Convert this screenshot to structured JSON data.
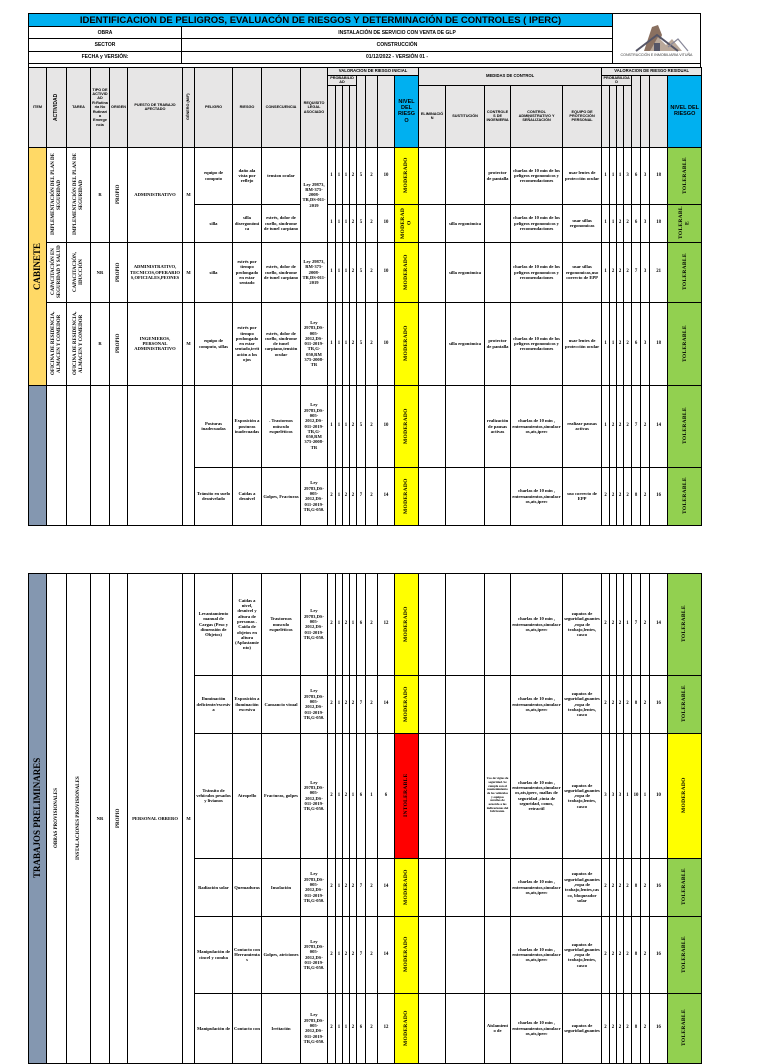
{
  "header": {
    "title": "IDENTIFICACION DE PELIGROS, EVALUACÓN DE RIESGOS Y DETERMINACIÓN DE CONTROLES ( IPERC)",
    "fields": [
      {
        "label": "OBRA",
        "value": "INSTALACIÓN DE SERVICIO CON VENTA DE GLP"
      },
      {
        "label": "SECTOR",
        "value": "CONSTRUCCIÓN"
      },
      {
        "label": "FECHA y VERSIÓN:",
        "value": "01/12/2022  - VERSIÓN 01 -"
      }
    ],
    "logo_text": "CONSTRUCCIÓN E INMOBILIARIA VITUÑA"
  },
  "columns": {
    "item": "ITEM",
    "activity": "ACTIVIDAD",
    "task": "TAREA",
    "type": "TIPO DE ACTIVIDAD R:Rutinaria No Rutinaria Emergencia",
    "origin": "ORIGEN",
    "post": "PUESTO DE TRABAJO AFECTADO",
    "gender": "GÉNERO (M/F)",
    "hazard": "PELIGRO",
    "risk": "RIESGO",
    "consequence": "CONSECUENCIA",
    "legal": "REQUISITO LEGAL ASOCIADO",
    "initial_valuation": "VALORACION DE RIESGO INICIAL",
    "probability": "PROBABILIDAD",
    "risk_level": "NIVEL DEL RIESGO",
    "control_measures": "MEDIDAS DE CONTROL",
    "elimination": "ELIMINACIÓN",
    "substitution": "SUSTITUCIÓN",
    "engineering": "CONTROLES DE INGENIERIA",
    "administrative": "CONTROL ADMINISTRATIVO Y SEÑALIZACIÓN",
    "ppe": "EQUIPO DE PROTECCIÓN PERSONAL",
    "residual_valuation": "VALORACION DE RIESGO RESIDUAL"
  },
  "level_colors": {
    "MODERADO": "#FFFF00",
    "TOLERABLE": "#92D050",
    "INTOLERABLE": "#FF0000"
  },
  "group_colors": {
    "cabinete": "#FFD966",
    "trabajos": "#8497B0"
  },
  "page1": {
    "left": {
      "item": [
        "CABINETE",
        ""
      ],
      "activity": [
        "IMPLEMENTACIÓN DEL PLAN DE SEGURIDAD",
        "CAPACITACIÓN EN SEGURIDAD Y SALUD",
        "OFICINA DE RESIDENCIA, ALMACEN Y COMEDOR",
        ""
      ],
      "task": [
        "IMPLEMENTACIÓN DEL PLAN DE SEGURIDAD",
        "CAPACITACIÓN, IDUCCIÓN",
        "OFICINA DE RESIDENCIA, ALMACEN Y COMEDOR",
        ""
      ],
      "type": [
        "R",
        "NR",
        "R",
        ""
      ],
      "origin": [
        "PROPIO",
        "PROPIO",
        "PROPIO",
        ""
      ],
      "post": [
        "ADMINISTRATIVO",
        "ADMINISTRATIVO, TECNICOS,OPERARIOS,OFICIALES,PEONES",
        "INGENIEROS, PERSONAL ADMINISTRATIVO",
        ""
      ],
      "gender": [
        "M",
        "M",
        "M",
        ""
      ]
    },
    "legal": [
      "Ley 29873, RM-375-2008-TR,DS-011-2019",
      "Ley 29873, RM-375-2008-TR,DS-011-2019",
      "Ley 29783,DS-005-2012,DS-011-2019-TR,G-050,RM 375-2008-TR",
      "Ley 29783,DS-005-2012,DS-011-2019-TR,G-050,RM 375-2008-TR",
      "Ley 29783,DS-005-2012,DS-011-2019-TR,G-050."
    ],
    "rows": [
      {
        "hazard": "equipo de computo",
        "risk": "daño ala vista por reflejo",
        "consequence": "tension ocular",
        "initial": [
          1,
          1,
          1,
          2,
          5,
          2,
          10
        ],
        "initial_level": "MODERADO",
        "elimination": "",
        "substitution": "",
        "engineering": "protector de pantalla",
        "administrative": "charlas de 10 min de los peligros ergonomicos y recomendaciones",
        "ppe": "usar lentes de protección ocular",
        "residual": [
          1,
          1,
          1,
          3,
          6,
          3,
          18
        ],
        "residual_level": "TOLERABLE"
      },
      {
        "hazard": "silla",
        "risk": "silla disergonómica",
        "consequence": "estrés, dolor de cuello, sindrome de tunel carpiano",
        "initial": [
          1,
          1,
          1,
          2,
          5,
          2,
          10
        ],
        "initial_level": "MODERADO",
        "elimination": "",
        "substitution": "silla ergonómica",
        "engineering": "",
        "administrative": "charlas de 10 min de los peligros ergonomicos y recomendaciones",
        "ppe": "usar sillas ergonomicas",
        "residual": [
          1,
          1,
          2,
          2,
          6,
          3,
          18
        ],
        "residual_level": "TOLERABLE"
      },
      {
        "hazard": "silla",
        "risk": "estrés por tiempo prolongado en estar sentado",
        "consequence": "estrés, dolor de cuello, sindrome de tunel carpiano",
        "initial": [
          1,
          1,
          1,
          2,
          5,
          2,
          10
        ],
        "initial_level": "MODERADO",
        "elimination": "",
        "substitution": "silla ergonómica",
        "engineering": "",
        "administrative": "charlas de 10 min de los peligros ergonomicos y recomendaciones",
        "ppe": "usar sillas ergonomicas,uso correcto de EPP",
        "residual": [
          1,
          2,
          2,
          2,
          7,
          3,
          21
        ],
        "residual_level": "TOLERABLE"
      },
      {
        "hazard": "equipo de computo, sillas",
        "risk": "estrés por tiempo prolongado en estar sentado,irritación a los ojos",
        "consequence": "estrés, dolor de cuello, sindrome de tunel carpiano,tensión ocular",
        "initial": [
          1,
          1,
          1,
          2,
          5,
          2,
          10
        ],
        "initial_level": "MODERADO",
        "elimination": "",
        "substitution": "silla ergonómica",
        "engineering": "protector de pantalla",
        "administrative": "charlas de 10 min de los peligros ergonomicos y recomendaciones",
        "ppe": "usar lentes de protección ocular",
        "residual": [
          1,
          1,
          2,
          2,
          6,
          3,
          18
        ],
        "residual_level": "TOLERABLE"
      },
      {
        "hazard": "Posturas inadecuadas",
        "risk": "Exposición a posturas inadecuadas",
        "consequence": ". Trastornos músculo esqueléticos",
        "initial": [
          1,
          1,
          1,
          2,
          5,
          2,
          10
        ],
        "initial_level": "MODERADO",
        "elimination": "",
        "substitution": "",
        "engineering": "realización de pausas activas",
        "administrative": "charlas de 10 min , entrenamientos,simulacros,ats,iperc",
        "ppe": "realizar pausas activas",
        "residual": [
          1,
          2,
          2,
          2,
          7,
          2,
          14
        ],
        "residual_level": "TOLERABLE"
      },
      {
        "hazard": "Tránsito en suelo desnivelado",
        "risk": "Caídas a desnivel",
        "consequence": "Golpes, Fracturas",
        "initial": [
          2,
          1,
          2,
          2,
          7,
          2,
          14
        ],
        "initial_level": "MODERADO",
        "elimination": "",
        "substitution": "",
        "engineering": "",
        "administrative": "charlas de 10 min , entrenamientos,simulacros,ats,iperc",
        "ppe": "uso correcto de EPP",
        "residual": [
          2,
          2,
          2,
          2,
          8,
          2,
          16
        ],
        "residual_level": "TOLERABLE"
      }
    ]
  },
  "page2": {
    "left": {
      "item": [
        "TRABAJOS PRELIMINARES"
      ],
      "activity": [
        "OBRAS PROVISIONALES"
      ],
      "task": [
        "INSTALACIONES PROVISIONALES"
      ],
      "type": [
        "NR"
      ],
      "origin": [
        "PROPIO"
      ],
      "post": [
        "PERSONAL OBRERO"
      ],
      "gender": [
        "M"
      ]
    },
    "legal": [
      "Ley 29783,DS-005-2012,DS-011-2019-TR,G-050.",
      "Ley 29783,DS-005-2012,DS-011-2019-TR,G-050.",
      "Ley 29783,DS-005-2012,DS-011-2019-TR,G-050.",
      "Ley 29783,DS-005-2012,DS-011-2019-TR,G-050.",
      "Ley 29783,DS-005-2012,DS-011-2019-TR,G-050.",
      "Ley 29783,DS-005-2012,DS-011-2019-TR,G-050."
    ],
    "rows": [
      {
        "hazard": "Levantamiento manual de Cargas (Peso y dimensión de Objetos)",
        "risk": "Caídas a nivel, desnivel y altura de personas . Caída de objetos en altura (Aplastamiento)",
        "consequence": "Trastornos musculo esqueléticos",
        "initial": [
          2,
          1,
          2,
          1,
          6,
          2,
          12
        ],
        "initial_level": "MODERADO",
        "elimination": "",
        "substitution": "",
        "engineering": "",
        "administrative": "charlas de 10 min , entrenamientos,simulacros,ats,iperc",
        "ppe": "zapatos de seguridad,guantes,ropa de trabajo,lentes, casco",
        "residual": [
          2,
          2,
          2,
          1,
          7,
          2,
          14
        ],
        "residual_level": "TOLERABLE"
      },
      {
        "hazard": "Iluminación deficiente/excesiva",
        "risk": "Exposición a iluminación excesiva",
        "consequence": "Cansancio visual",
        "initial": [
          2,
          1,
          2,
          2,
          7,
          2,
          14
        ],
        "initial_level": "MODERADO",
        "elimination": "",
        "substitution": "",
        "engineering": "",
        "administrative": "charlas de 10 min , entrenamientos,simulacros,ats,iperc",
        "ppe": "zapatos de seguridad,guantes,ropa de trabajo,lentes, casco",
        "residual": [
          2,
          2,
          2,
          2,
          8,
          2,
          16
        ],
        "residual_level": "TOLERABLE"
      },
      {
        "hazard": "Tránsito de vehículos pesados y livianos",
        "risk": "Atropello",
        "consequence": "Fracturas, golpes",
        "initial": [
          2,
          1,
          2,
          1,
          6,
          1,
          6
        ],
        "initial_level": "INTOLERABLE",
        "elimination": "",
        "substitution": "",
        "engineering": "Uso de vigías de seguridad. Se cumple con el mantenimiento de los vehículos y equipos móviles de acuerdo a las indicaciones del fabricante.",
        "administrative": "charlas de 10 min , entrenamientos,simulacros,ats,iperc, mallas de seguridad ,cinta de seguridad, conos, retractil",
        "ppe": "zapatos de seguridad,guantes,ropa de trabajo,lentes, casco",
        "residual": [
          3,
          3,
          3,
          1,
          10,
          1,
          10
        ],
        "residual_level": "MODERADO"
      },
      {
        "hazard": "Radiación solar",
        "risk": "Quemaduras",
        "consequence": "Insolación",
        "initial": [
          2,
          1,
          2,
          2,
          7,
          2,
          14
        ],
        "initial_level": "MODERADO",
        "elimination": "",
        "substitution": "",
        "engineering": "",
        "administrative": "charlas de 10 min , entrenamientos,simulacros,ats,iperc",
        "ppe": "zapatos de seguridad,guantes,ropa de trabajo,lentes,casco, bloqueador solar",
        "residual": [
          2,
          2,
          2,
          2,
          8,
          2,
          16
        ],
        "residual_level": "TOLERABLE"
      },
      {
        "hazard": "Manipulación de cincel y comba",
        "risk": "Contacto con Herramientas",
        "consequence": "Golpes, atriciones",
        "initial": [
          2,
          1,
          2,
          2,
          7,
          2,
          14
        ],
        "initial_level": "MODERADO",
        "elimination": "",
        "substitution": "",
        "engineering": "",
        "administrative": "charlas de 10 min , entrenamientos,simulacros,ats,iperc",
        "ppe": "zapatos de seguridad,guantes,ropa de trabajo,lentes, casco",
        "residual": [
          2,
          2,
          2,
          2,
          8,
          2,
          16
        ],
        "residual_level": "TOLERABLE"
      },
      {
        "hazard": "Manipulación de",
        "risk": "Contacto con",
        "consequence": "Irritación",
        "initial": [
          2,
          1,
          1,
          2,
          6,
          2,
          12
        ],
        "initial_level": "MODERADO",
        "elimination": "",
        "substitution": "",
        "engineering": "Aislamiento de",
        "administrative": "charlas de 10 min , entrenamientos,simulacros,ats,iperc",
        "ppe": "zapatos de seguridad,guantes",
        "residual": [
          2,
          2,
          2,
          2,
          8,
          2,
          16
        ],
        "residual_level": "TOLERABLE"
      }
    ]
  }
}
